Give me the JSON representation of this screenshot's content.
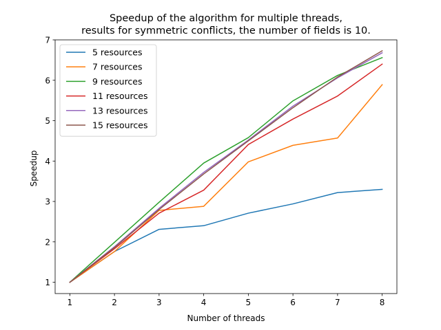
{
  "chart_data": {
    "type": "line",
    "title_line1": "Speedup of the algorithm for multiple threads,",
    "title_line2": "results for symmetric conflicts, the number of fields is 10.",
    "xlabel": "Number of threads",
    "ylabel": "Speedup",
    "x": [
      1,
      2,
      3,
      4,
      5,
      6,
      7,
      8
    ],
    "xlim": [
      0.67,
      8.33
    ],
    "ylim": [
      0.72,
      7.0
    ],
    "xticks": [
      1,
      2,
      3,
      4,
      5,
      6,
      7,
      8
    ],
    "yticks": [
      1,
      2,
      3,
      4,
      5,
      6,
      7
    ],
    "grid": false,
    "legend_position": "top-left",
    "series": [
      {
        "name": "5 resources",
        "color": "#1f77b4",
        "values": [
          1.0,
          1.76,
          2.31,
          2.4,
          2.71,
          2.94,
          3.22,
          3.3
        ]
      },
      {
        "name": "7 resources",
        "color": "#ff7f0e",
        "values": [
          1.0,
          1.76,
          2.78,
          2.88,
          3.98,
          4.39,
          4.57,
          5.89
        ]
      },
      {
        "name": "9 resources",
        "color": "#2ca02c",
        "values": [
          1.0,
          1.99,
          2.98,
          3.95,
          4.58,
          5.49,
          6.12,
          6.56
        ]
      },
      {
        "name": "11 resources",
        "color": "#d62728",
        "values": [
          1.0,
          1.83,
          2.71,
          3.28,
          4.41,
          5.04,
          5.61,
          6.4
        ]
      },
      {
        "name": "13 resources",
        "color": "#9467bd",
        "values": [
          1.0,
          1.88,
          2.83,
          3.72,
          4.52,
          5.36,
          6.06,
          6.68
        ]
      },
      {
        "name": "15 resources",
        "color": "#8c564b",
        "values": [
          1.0,
          1.86,
          2.8,
          3.68,
          4.5,
          5.32,
          6.08,
          6.73
        ]
      }
    ]
  }
}
